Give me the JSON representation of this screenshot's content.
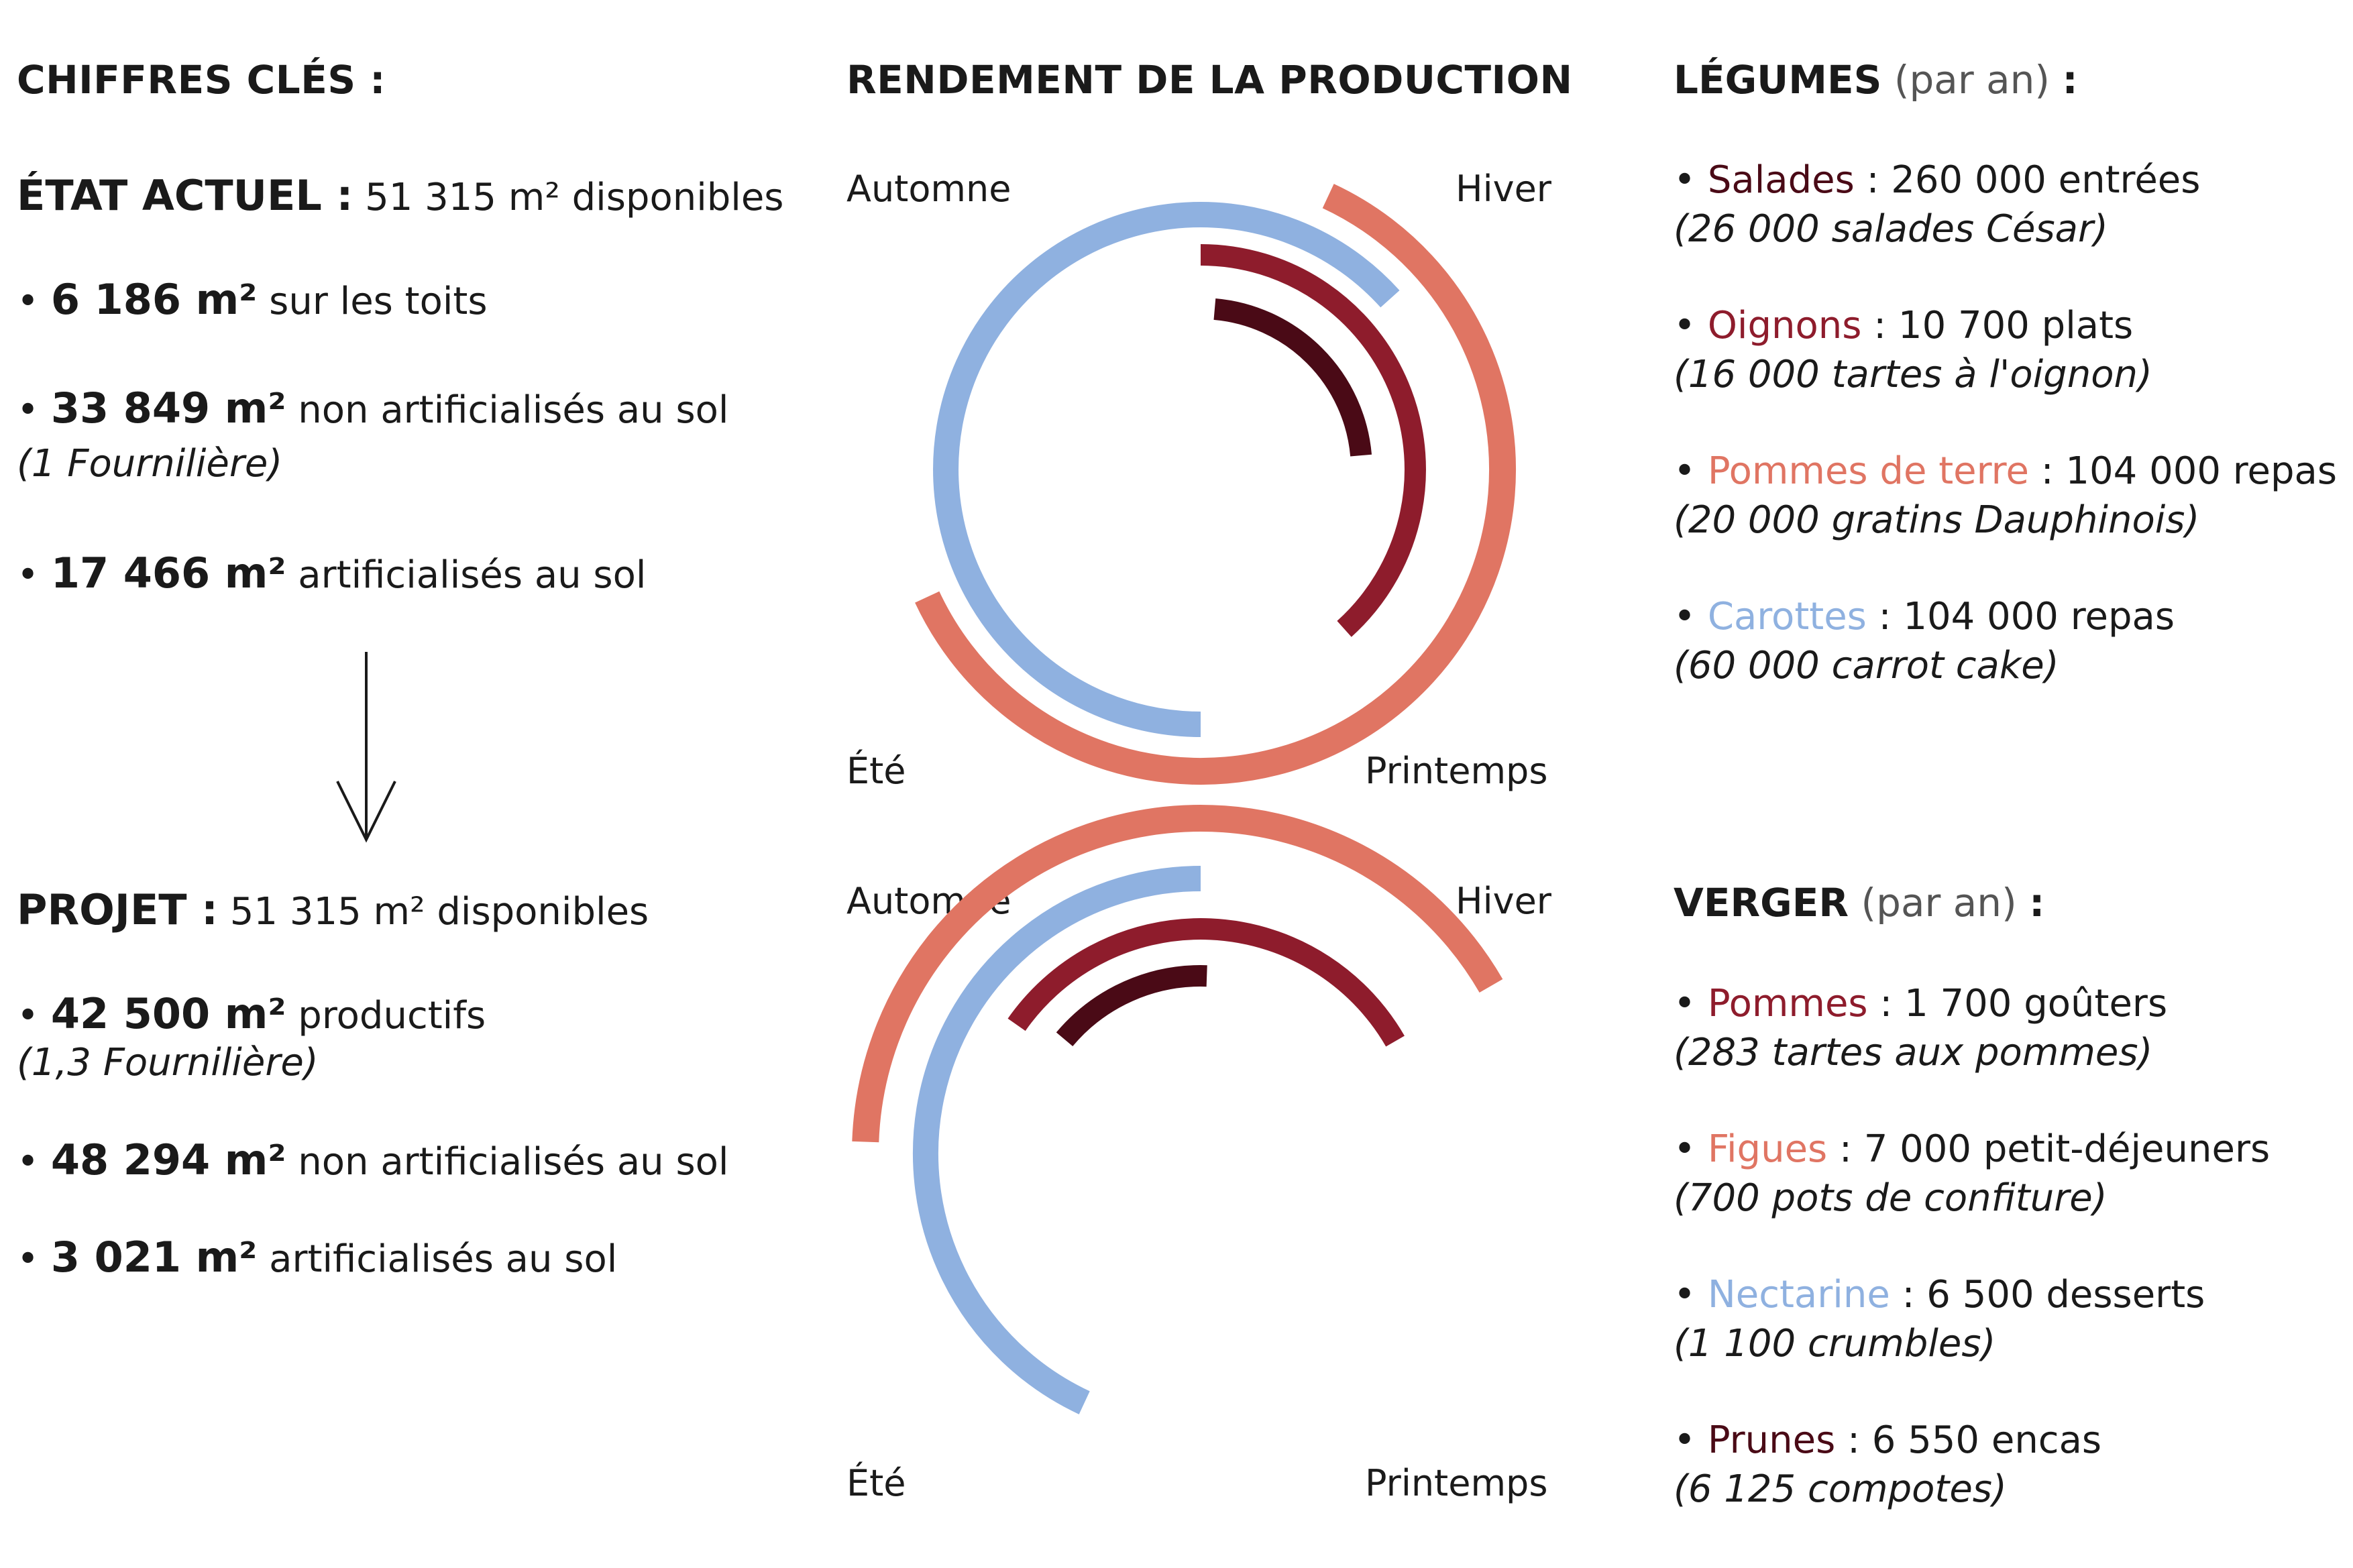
{
  "left": {
    "title": "CHIFFRES CLÉS :",
    "current": {
      "heading": "ÉTAT ACTUEL :",
      "heading_value": "51 315 m² disponibles",
      "items": [
        {
          "bullet": "•",
          "strong": "6 186 m²",
          "text": "sur les toits",
          "note": ""
        },
        {
          "bullet": "•",
          "strong": "33 849 m²",
          "text": "non artificialisés au sol",
          "note": "(1 Fournilière)"
        },
        {
          "bullet": "•",
          "strong": "17 466 m²",
          "text": "artificialisés au sol",
          "note": ""
        }
      ]
    },
    "project": {
      "heading": "PROJET :",
      "heading_value": "51 315 m² disponibles",
      "items": [
        {
          "bullet": "•",
          "strong": "42 500 m²",
          "text": "productifs",
          "note": "(1,3 Fournilière)"
        },
        {
          "bullet": "•",
          "strong": "48 294 m²",
          "text": "non artificialisés au sol",
          "note": ""
        },
        {
          "bullet": "•",
          "strong": "3 021 m²",
          "text": "artificialisés au sol",
          "note": ""
        }
      ]
    }
  },
  "middle": {
    "title": "RENDEMENT DE LA PRODUCTION"
  },
  "chart_data": [
    {
      "type": "radial-arc",
      "seasons": {
        "top_left": "Automne",
        "top_right": "Hiver",
        "bottom_left": "Été",
        "bottom_right": "Printemps"
      },
      "series": [
        {
          "color": "#e07563",
          "start_deg": 295,
          "end_deg": 515
        },
        {
          "color": "#8fb1e0",
          "start_deg": 90,
          "end_deg": 318
        },
        {
          "color": "#8e1c2c",
          "start_deg": 270,
          "end_deg": 408
        },
        {
          "color": "#4a0a16",
          "start_deg": 275,
          "end_deg": 355
        }
      ]
    },
    {
      "type": "radial-arc",
      "seasons": {
        "top_left": "Automne",
        "top_right": "Hiver",
        "bottom_left": "Été",
        "bottom_right": "Printemps"
      },
      "series": [
        {
          "color": "#e07563",
          "start_deg": 182,
          "end_deg": 330
        },
        {
          "color": "#8fb1e0",
          "start_deg": 115,
          "end_deg": 270
        },
        {
          "color": "#8e1c2c",
          "start_deg": 215,
          "end_deg": 330
        },
        {
          "color": "#4a0a16",
          "start_deg": 220,
          "end_deg": 272
        }
      ]
    }
  ],
  "right": {
    "legumes": {
      "title": "LÉGUMES",
      "title_suffix": "(par an)",
      "colon": ":",
      "items": [
        {
          "bullet": "•",
          "name": "Salades",
          "color": "dark",
          "value": ": 260 000 entrées",
          "note": "(26 000 salades César)"
        },
        {
          "bullet": "•",
          "name": "Oignons",
          "color": "red",
          "value": ": 10 700 plats",
          "note": "(16 000 tartes à l'oignon)"
        },
        {
          "bullet": "•",
          "name": "Pommes de terre",
          "color": "salmon",
          "value": ": 104 000 repas",
          "note": "(20 000 gratins Dauphinois)"
        },
        {
          "bullet": "•",
          "name": "Carottes",
          "color": "blue",
          "value": ": 104 000 repas",
          "note": "(60 000 carrot cake)"
        }
      ]
    },
    "verger": {
      "title": "VERGER",
      "title_suffix": "(par an)",
      "colon": ":",
      "items": [
        {
          "bullet": "•",
          "name": "Pommes",
          "color": "red",
          "value": ": 1 700 goûters",
          "note": "(283 tartes aux pommes)"
        },
        {
          "bullet": "•",
          "name": "Figues",
          "color": "salmon",
          "value": ": 7 000 petit-déjeuners",
          "note": "(700 pots de confiture)"
        },
        {
          "bullet": "•",
          "name": "Nectarine",
          "color": "blue",
          "value": ": 6 500 desserts",
          "note": "(1 100 crumbles)"
        },
        {
          "bullet": "•",
          "name": "Prunes",
          "color": "dark",
          "value": ": 6 550 encas",
          "note": "(6 125 compotes)"
        }
      ]
    }
  }
}
